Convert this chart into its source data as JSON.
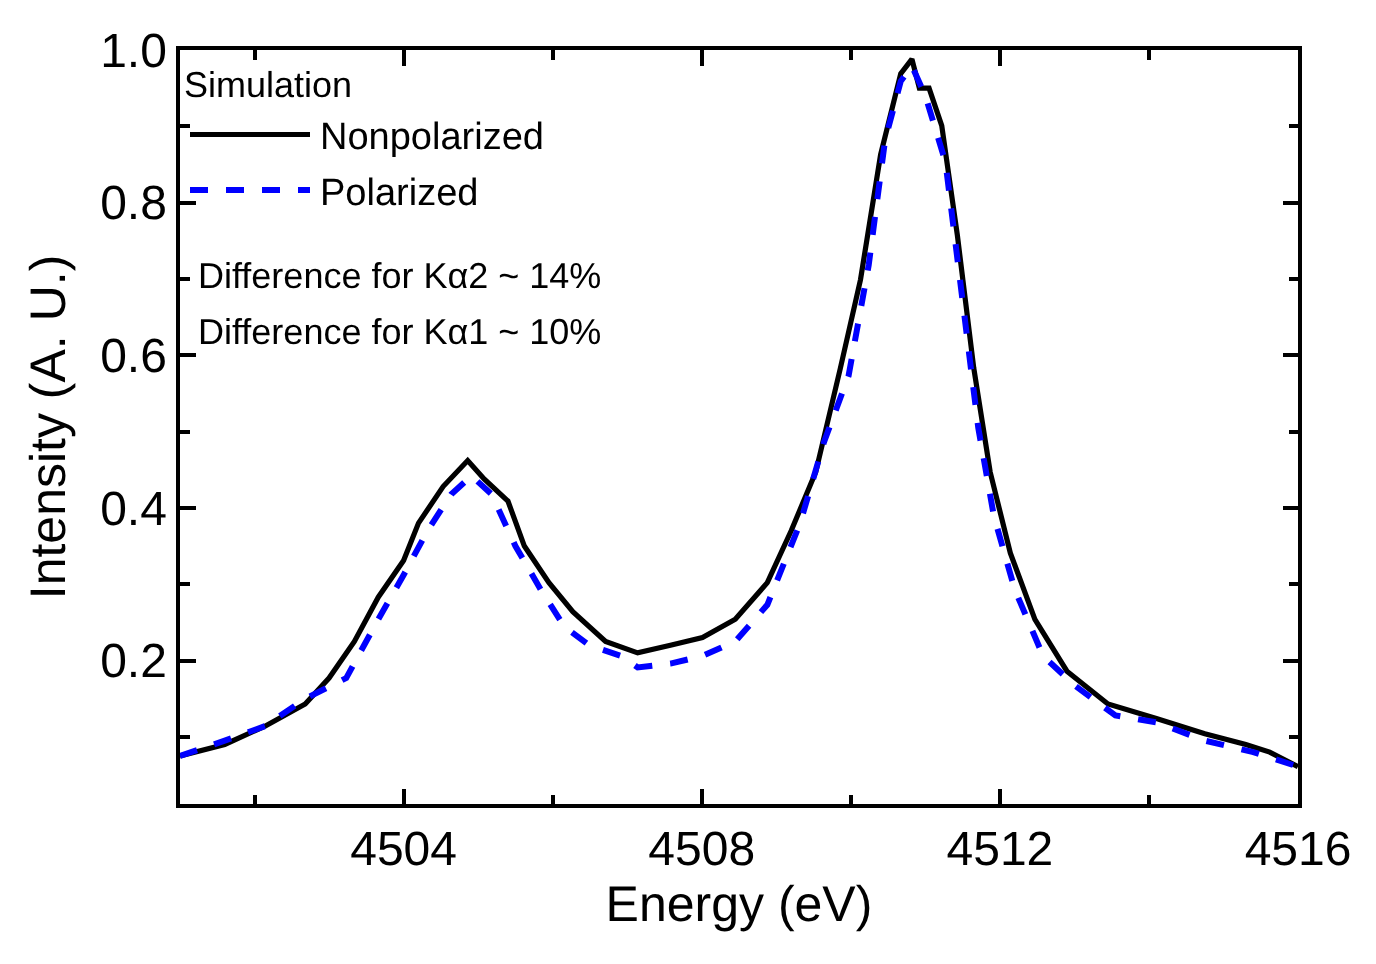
{
  "chart_data": {
    "type": "line",
    "xlabel": "Energy (eV)",
    "ylabel": "Intensity (A. U.)",
    "legend_title": "Simulation",
    "legend": "top left",
    "xlim": [
      4501,
      4516
    ],
    "xticks": [
      4504,
      4508,
      4512,
      4516
    ],
    "ylim": [
      0.012,
      1.0
    ],
    "yticks": [
      0.2,
      0.4,
      0.6,
      0.8,
      {
        "value": 1.0,
        "label": "1.0"
      }
    ],
    "annotations": [
      "Difference for Kα2 ~ 14%",
      "Difference for Kα1 ~ 10%"
    ],
    "series": [
      {
        "name": "Nonpolarized",
        "color": "#000000",
        "line_style": "solid",
        "x": [
          4501,
          4501.6,
          4502.14,
          4502.68,
          4503.0,
          4503.34,
          4503.66,
          4504.0,
          4504.2,
          4504.53,
          4504.86,
          4505.08,
          4505.4,
          4505.62,
          4505.95,
          4506.27,
          4506.71,
          4507.14,
          4507.58,
          4508.01,
          4508.45,
          4508.88,
          4509.2,
          4509.53,
          4509.86,
          4510.13,
          4510.4,
          4510.67,
          4510.82,
          4510.92,
          4511.05,
          4511.22,
          4511.43,
          4511.65,
          4511.87,
          4512.14,
          4512.47,
          4512.9,
          4513.45,
          4514.1,
          4514.75,
          4515.3,
          4515.62,
          4516
        ],
        "values": [
          0.075,
          0.09,
          0.114,
          0.143,
          0.177,
          0.225,
          0.283,
          0.331,
          0.38,
          0.428,
          0.462,
          0.438,
          0.409,
          0.35,
          0.302,
          0.264,
          0.225,
          0.21,
          0.22,
          0.23,
          0.254,
          0.302,
          0.37,
          0.447,
          0.583,
          0.699,
          0.863,
          0.969,
          0.988,
          0.95,
          0.95,
          0.901,
          0.757,
          0.583,
          0.447,
          0.341,
          0.254,
          0.186,
          0.143,
          0.124,
          0.104,
          0.09,
          0.08,
          0.061
        ]
      },
      {
        "name": "Polarized",
        "color": "#0000ff",
        "line_style": "dashed",
        "x": [
          4501,
          4501.6,
          4502.14,
          4502.68,
          4503.23,
          4503.66,
          4504.0,
          4504.32,
          4504.64,
          4504.91,
          4505.18,
          4505.5,
          4505.84,
          4506.16,
          4506.49,
          4506.92,
          4507.14,
          4507.58,
          4508.01,
          4508.45,
          4508.88,
          4509.32,
          4509.64,
          4509.97,
          4510.24,
          4510.46,
          4510.67,
          4510.82,
          4511.0,
          4511.27,
          4511.49,
          4511.71,
          4511.92,
          4512.2,
          4512.58,
          4513.01,
          4513.55,
          4514.1,
          4514.75,
          4515.4,
          4516
        ],
        "values": [
          0.075,
          0.095,
          0.114,
          0.15,
          0.177,
          0.254,
          0.312,
          0.37,
          0.418,
          0.442,
          0.418,
          0.35,
          0.293,
          0.244,
          0.22,
          0.206,
          0.191,
          0.196,
          0.206,
          0.225,
          0.273,
          0.38,
          0.486,
          0.573,
          0.718,
          0.882,
          0.959,
          0.979,
          0.94,
          0.853,
          0.679,
          0.505,
          0.389,
          0.293,
          0.206,
          0.167,
          0.128,
          0.119,
          0.095,
          0.08,
          0.061
        ]
      }
    ]
  }
}
